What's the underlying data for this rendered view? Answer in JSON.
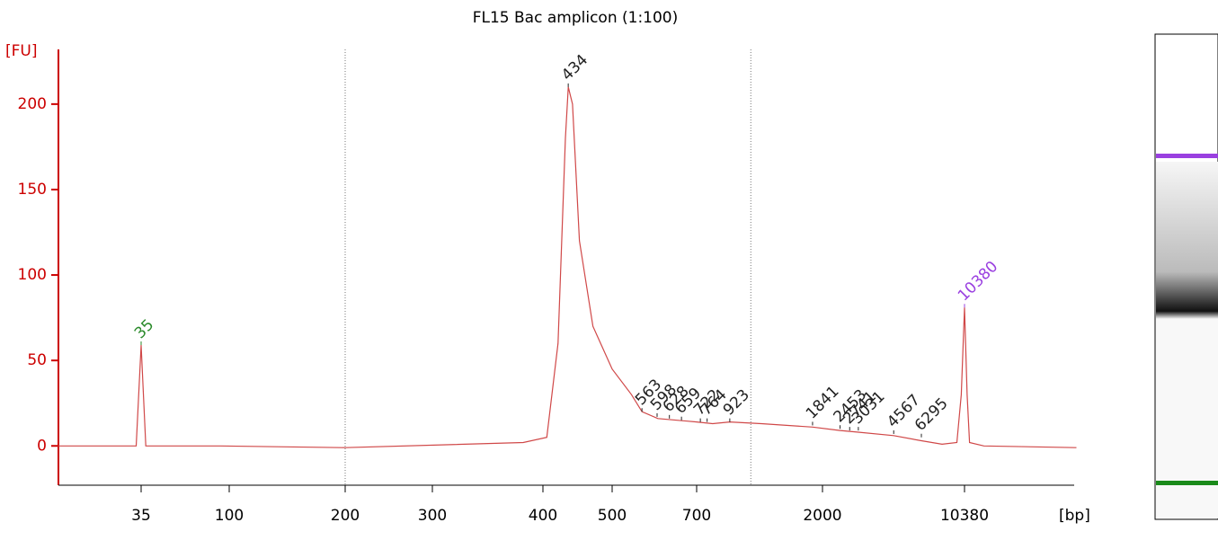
{
  "chart_data": {
    "type": "line",
    "title": "FL15 Bac amplicon (1:100)",
    "y_label": "[FU]",
    "x_label": "[bp]",
    "xticks": [
      35,
      100,
      200,
      300,
      400,
      500,
      700,
      2000,
      10380
    ],
    "ylim": [
      -23,
      232
    ],
    "yticks": [
      0,
      50,
      100,
      150,
      200
    ],
    "vlines": [
      200,
      1100
    ],
    "series": [
      {
        "color": "#d04848",
        "x": [
          13,
          20,
          33,
          35,
          37,
          90,
          200,
          380,
          405,
          420,
          430,
          434,
          440,
          450,
          470,
          500,
          540,
          563,
          600,
          700,
          800,
          923,
          1200,
          1841,
          2453,
          3031,
          4567,
          6295,
          8000,
          9500,
          10000,
          10380,
          10700,
          11000,
          13000,
          38000
        ],
        "values": [
          0,
          0,
          0,
          59,
          0,
          0,
          -1,
          2,
          5,
          60,
          180,
          210,
          200,
          120,
          70,
          45,
          30,
          20,
          16,
          14,
          13,
          14,
          13,
          11,
          9,
          8,
          6,
          3,
          1,
          2,
          30,
          81,
          30,
          2,
          0,
          -1
        ]
      }
    ],
    "peaks": {
      "x": [
        35,
        434,
        563,
        598,
        628,
        659,
        722,
        764,
        923,
        1841,
        2453,
        2741,
        3031,
        4567,
        6295,
        10380
      ],
      "values": [
        59,
        210,
        20,
        17,
        16,
        15,
        14,
        14,
        14,
        12,
        10,
        9,
        9,
        7,
        5,
        81
      ],
      "colors": [
        "#2a8a2a",
        "#222222",
        "#222222",
        "#222222",
        "#222222",
        "#222222",
        "#222222",
        "#222222",
        "#222222",
        "#222222",
        "#222222",
        "#222222",
        "#222222",
        "#222222",
        "#222222",
        "#9a40e0"
      ]
    }
  }
}
